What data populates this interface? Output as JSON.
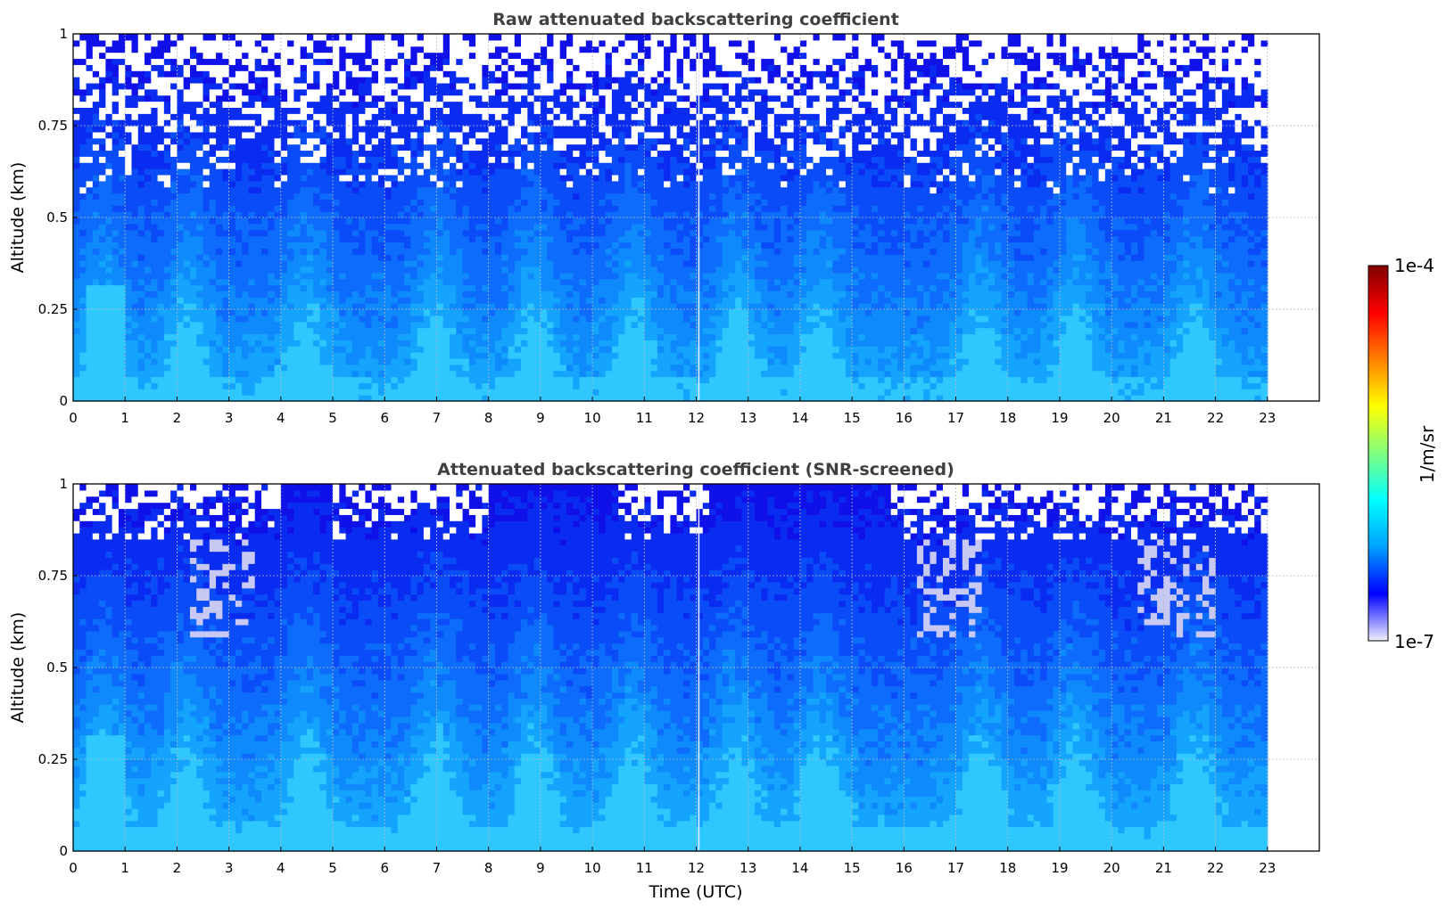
{
  "chart_data": [
    {
      "type": "heatmap",
      "title": "Raw attenuated backscattering coefficient",
      "xlabel": "",
      "ylabel": "Altitude (km)",
      "xlim": [
        0,
        24
      ],
      "ylim": [
        0,
        1
      ],
      "data_extent_x": [
        0,
        23
      ],
      "x_ticks": [
        "0",
        "1",
        "2",
        "3",
        "4",
        "5",
        "6",
        "7",
        "8",
        "9",
        "10",
        "11",
        "12",
        "13",
        "14",
        "15",
        "16",
        "17",
        "18",
        "19",
        "20",
        "21",
        "22",
        "23"
      ],
      "y_ticks": [
        "0",
        "0.25",
        "0.5",
        "0.75",
        "1"
      ],
      "grid": true,
      "screened": false
    },
    {
      "type": "heatmap",
      "title": "Attenuated backscattering coefficient (SNR-screened)",
      "xlabel": "Time (UTC)",
      "ylabel": "Altitude (km)",
      "xlim": [
        0,
        24
      ],
      "ylim": [
        0,
        1
      ],
      "data_extent_x": [
        0,
        23
      ],
      "x_ticks": [
        "0",
        "1",
        "2",
        "3",
        "4",
        "5",
        "6",
        "7",
        "8",
        "9",
        "10",
        "11",
        "12",
        "13",
        "14",
        "15",
        "16",
        "17",
        "18",
        "19",
        "20",
        "21",
        "22",
        "23"
      ],
      "y_ticks": [
        "0",
        "0.25",
        "0.5",
        "0.75",
        "1"
      ],
      "grid": true,
      "screened": true
    }
  ],
  "colorbar": {
    "label": "1/m/sr",
    "min_label": "1e-7",
    "max_label": "1e-4",
    "scale": "log",
    "colormap": [
      "#f0f0ff",
      "#0000ff",
      "#00a0ff",
      "#00ffff",
      "#80ff80",
      "#ffff00",
      "#ff8000",
      "#ff0000",
      "#800000"
    ]
  }
}
